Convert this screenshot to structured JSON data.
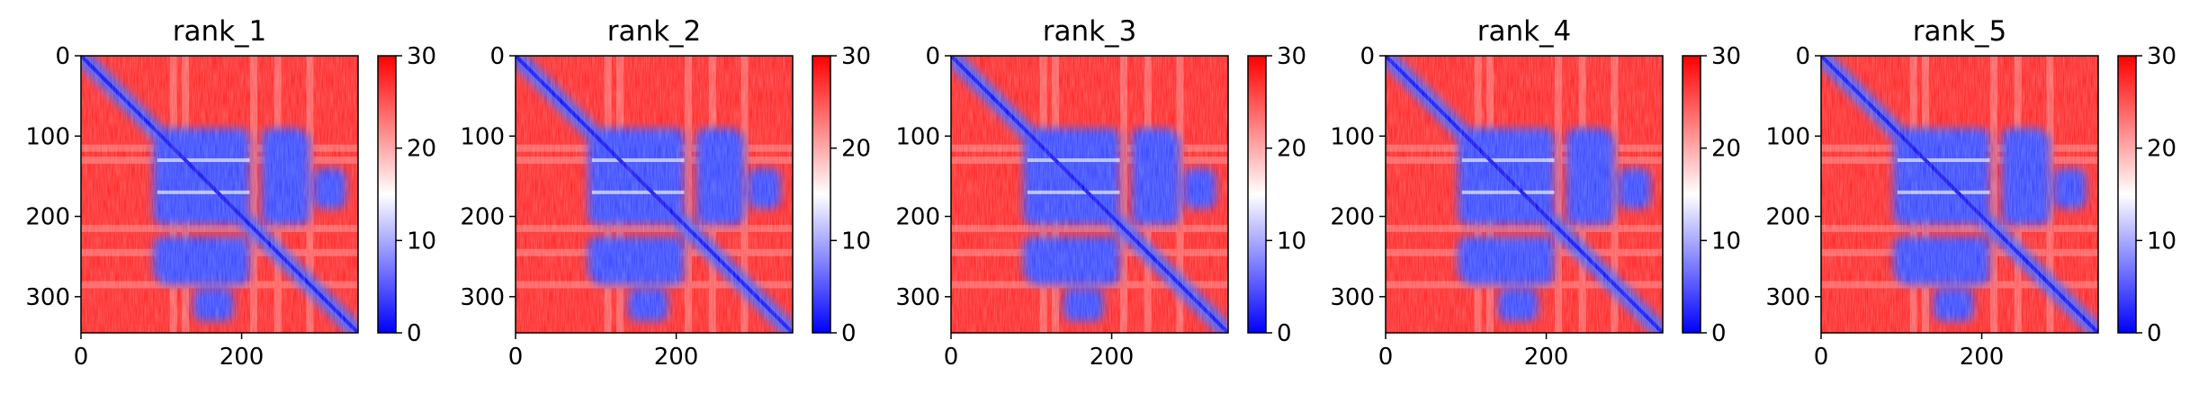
{
  "chart_data": [
    {
      "type": "heatmap",
      "title": "rank_1",
      "xlabel": "",
      "ylabel": "",
      "xlim": [
        0,
        345
      ],
      "ylim": [
        345,
        0
      ],
      "x_ticks": [
        0,
        200
      ],
      "y_ticks": [
        0,
        100,
        200,
        300
      ],
      "colorbar": {
        "min": 0,
        "max": 30,
        "ticks": [
          0,
          10,
          20,
          30
        ],
        "colormap": [
          "#0000ff",
          "#ffffff",
          "#ff0000"
        ]
      },
      "blue_regions": [
        {
          "label": "diagonal",
          "from": [
            0,
            0
          ],
          "to": [
            345,
            345
          ]
        },
        {
          "rows": [
            90,
            210
          ],
          "cols": [
            95,
            210
          ]
        },
        {
          "rows": [
            90,
            210
          ],
          "cols": [
            225,
            280
          ]
        },
        {
          "rows": [
            250,
            285
          ],
          "cols": [
            95,
            210
          ]
        },
        {
          "rows": [
            290,
            330
          ],
          "cols": [
            140,
            190
          ]
        }
      ],
      "red_bands": [
        115,
        130,
        215,
        245,
        285
      ]
    },
    {
      "type": "heatmap",
      "title": "rank_2",
      "xlabel": "",
      "ylabel": "",
      "xlim": [
        0,
        345
      ],
      "ylim": [
        345,
        0
      ],
      "x_ticks": [
        0,
        200
      ],
      "y_ticks": [
        0,
        100,
        200,
        300
      ],
      "colorbar": {
        "min": 0,
        "max": 30,
        "ticks": [
          0,
          10,
          20,
          30
        ],
        "colormap": [
          "#0000ff",
          "#ffffff",
          "#ff0000"
        ]
      },
      "blue_regions": [
        {
          "label": "diagonal",
          "from": [
            0,
            0
          ],
          "to": [
            345,
            345
          ]
        },
        {
          "rows": [
            90,
            210
          ],
          "cols": [
            95,
            210
          ]
        },
        {
          "rows": [
            90,
            210
          ],
          "cols": [
            225,
            280
          ]
        },
        {
          "rows": [
            250,
            285
          ],
          "cols": [
            95,
            210
          ]
        },
        {
          "rows": [
            290,
            330
          ],
          "cols": [
            140,
            190
          ]
        }
      ],
      "red_bands": [
        115,
        130,
        215,
        245,
        285
      ]
    },
    {
      "type": "heatmap",
      "title": "rank_3",
      "xlabel": "",
      "ylabel": "",
      "xlim": [
        0,
        345
      ],
      "ylim": [
        345,
        0
      ],
      "x_ticks": [
        0,
        200
      ],
      "y_ticks": [
        0,
        100,
        200,
        300
      ],
      "colorbar": {
        "min": 0,
        "max": 30,
        "ticks": [
          0,
          10,
          20,
          30
        ],
        "colormap": [
          "#0000ff",
          "#ffffff",
          "#ff0000"
        ]
      },
      "blue_regions": [
        {
          "label": "diagonal",
          "from": [
            0,
            0
          ],
          "to": [
            345,
            345
          ]
        },
        {
          "rows": [
            90,
            210
          ],
          "cols": [
            95,
            210
          ]
        },
        {
          "rows": [
            90,
            210
          ],
          "cols": [
            225,
            280
          ]
        },
        {
          "rows": [
            250,
            285
          ],
          "cols": [
            95,
            210
          ]
        },
        {
          "rows": [
            290,
            330
          ],
          "cols": [
            140,
            190
          ]
        }
      ],
      "red_bands": [
        115,
        130,
        215,
        245,
        285
      ]
    },
    {
      "type": "heatmap",
      "title": "rank_4",
      "xlabel": "",
      "ylabel": "",
      "xlim": [
        0,
        345
      ],
      "ylim": [
        345,
        0
      ],
      "x_ticks": [
        0,
        200
      ],
      "y_ticks": [
        0,
        100,
        200,
        300
      ],
      "colorbar": {
        "min": 0,
        "max": 30,
        "ticks": [
          0,
          10,
          20,
          30
        ],
        "colormap": [
          "#0000ff",
          "#ffffff",
          "#ff0000"
        ]
      },
      "blue_regions": [
        {
          "label": "diagonal",
          "from": [
            0,
            0
          ],
          "to": [
            345,
            345
          ]
        },
        {
          "rows": [
            90,
            210
          ],
          "cols": [
            95,
            210
          ]
        },
        {
          "rows": [
            90,
            210
          ],
          "cols": [
            225,
            280
          ]
        },
        {
          "rows": [
            250,
            285
          ],
          "cols": [
            95,
            210
          ]
        },
        {
          "rows": [
            290,
            330
          ],
          "cols": [
            140,
            190
          ]
        }
      ],
      "red_bands": [
        115,
        130,
        215,
        245,
        285
      ]
    },
    {
      "type": "heatmap",
      "title": "rank_5",
      "xlabel": "",
      "ylabel": "",
      "xlim": [
        0,
        345
      ],
      "ylim": [
        345,
        0
      ],
      "x_ticks": [
        0,
        200
      ],
      "y_ticks": [
        0,
        100,
        200,
        300
      ],
      "colorbar": {
        "min": 0,
        "max": 30,
        "ticks": [
          0,
          10,
          20,
          30
        ],
        "colormap": [
          "#0000ff",
          "#ffffff",
          "#ff0000"
        ]
      },
      "blue_regions": [
        {
          "label": "diagonal",
          "from": [
            0,
            0
          ],
          "to": [
            345,
            345
          ]
        },
        {
          "rows": [
            90,
            210
          ],
          "cols": [
            95,
            210
          ]
        },
        {
          "rows": [
            90,
            210
          ],
          "cols": [
            225,
            280
          ]
        },
        {
          "rows": [
            250,
            285
          ],
          "cols": [
            95,
            210
          ]
        },
        {
          "rows": [
            290,
            330
          ],
          "cols": [
            140,
            190
          ]
        }
      ],
      "red_bands": [
        115,
        130,
        215,
        245,
        285
      ]
    }
  ]
}
